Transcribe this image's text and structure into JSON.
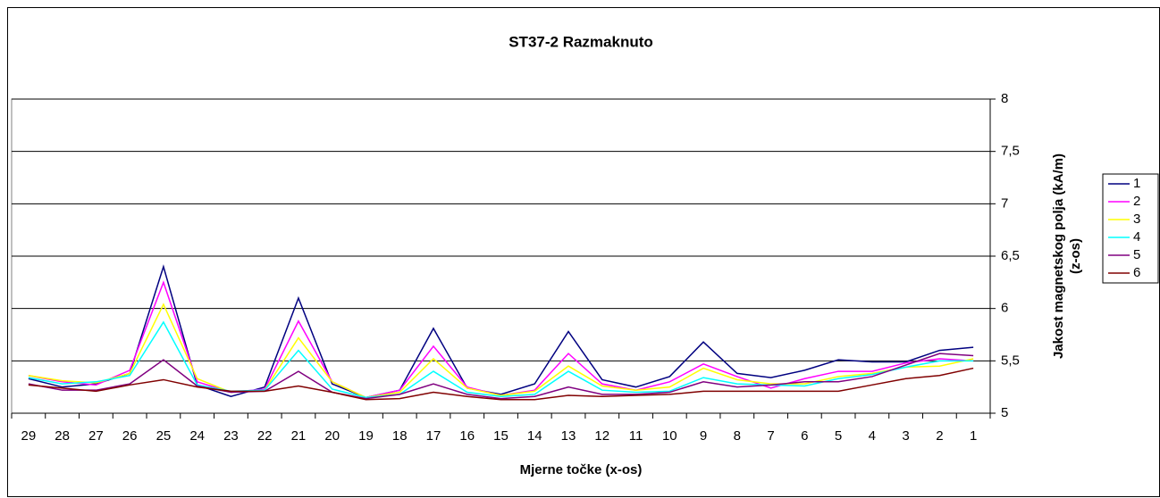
{
  "chart_data": {
    "type": "line",
    "title": "ST37-2 Razmaknuto",
    "x_label": "Mjerne točke (x-os)",
    "y_label_lines": [
      "Jakost magnetskog polja (kA/m)",
      "(z-os)"
    ],
    "categories": [
      "29",
      "28",
      "27",
      "26",
      "25",
      "24",
      "23",
      "22",
      "21",
      "20",
      "19",
      "18",
      "17",
      "16",
      "15",
      "14",
      "13",
      "12",
      "11",
      "10",
      "9",
      "8",
      "7",
      "6",
      "5",
      "4",
      "3",
      "2",
      "1"
    ],
    "ylim": [
      5,
      8
    ],
    "yticks": [
      5,
      {
        "value": 5.5,
        "label": "5,5"
      },
      6,
      {
        "value": 6.5,
        "label": "6,5"
      },
      7,
      {
        "value": 7.5,
        "label": "7,5"
      },
      8
    ],
    "grid": true,
    "legend": "right",
    "series": [
      {
        "name": "1",
        "color": "#000080",
        "values": [
          5.33,
          5.25,
          5.28,
          5.38,
          6.4,
          5.27,
          5.16,
          5.25,
          6.1,
          5.28,
          5.15,
          5.22,
          5.81,
          5.24,
          5.18,
          5.28,
          5.78,
          5.32,
          5.25,
          5.35,
          5.68,
          5.38,
          5.34,
          5.41,
          5.51,
          5.49,
          5.49,
          5.6,
          5.63
        ]
      },
      {
        "name": "2",
        "color": "#ff00ff",
        "values": [
          5.36,
          5.3,
          5.27,
          5.41,
          6.25,
          5.3,
          5.2,
          5.23,
          5.88,
          5.3,
          5.15,
          5.22,
          5.64,
          5.25,
          5.17,
          5.22,
          5.57,
          5.28,
          5.22,
          5.3,
          5.47,
          5.35,
          5.24,
          5.33,
          5.4,
          5.4,
          5.48,
          5.52,
          5.5
        ]
      },
      {
        "name": "3",
        "color": "#ffff00",
        "values": [
          5.36,
          5.31,
          5.29,
          5.38,
          6.04,
          5.33,
          5.2,
          5.22,
          5.72,
          5.3,
          5.15,
          5.2,
          5.52,
          5.24,
          5.17,
          5.21,
          5.45,
          5.26,
          5.22,
          5.25,
          5.43,
          5.32,
          5.28,
          5.28,
          5.35,
          5.38,
          5.44,
          5.45,
          5.52
        ]
      },
      {
        "name": "4",
        "color": "#00ffff",
        "values": [
          5.34,
          5.28,
          5.3,
          5.36,
          5.87,
          5.27,
          5.21,
          5.22,
          5.6,
          5.23,
          5.15,
          5.18,
          5.4,
          5.2,
          5.16,
          5.18,
          5.4,
          5.22,
          5.2,
          5.21,
          5.34,
          5.28,
          5.27,
          5.26,
          5.33,
          5.37,
          5.44,
          5.5,
          5.5
        ]
      },
      {
        "name": "5",
        "color": "#800080",
        "values": [
          5.28,
          5.22,
          5.22,
          5.28,
          5.51,
          5.26,
          5.2,
          5.21,
          5.4,
          5.2,
          5.14,
          5.18,
          5.28,
          5.18,
          5.14,
          5.16,
          5.25,
          5.18,
          5.18,
          5.2,
          5.3,
          5.25,
          5.27,
          5.3,
          5.3,
          5.35,
          5.46,
          5.57,
          5.55
        ]
      },
      {
        "name": "6",
        "color": "#800000",
        "values": [
          5.27,
          5.24,
          5.21,
          5.27,
          5.32,
          5.25,
          5.21,
          5.21,
          5.26,
          5.2,
          5.13,
          5.14,
          5.2,
          5.16,
          5.13,
          5.13,
          5.17,
          5.16,
          5.17,
          5.18,
          5.21,
          5.21,
          5.21,
          5.21,
          5.21,
          5.27,
          5.33,
          5.36,
          5.43
        ]
      }
    ]
  }
}
